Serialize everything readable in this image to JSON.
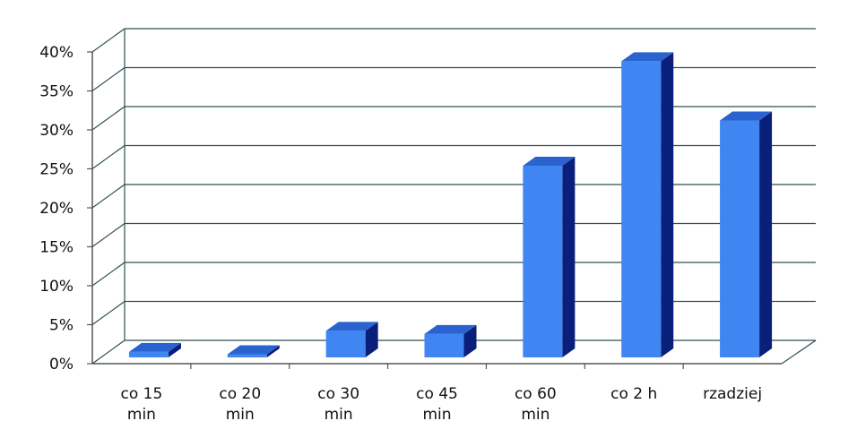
{
  "chart_data": {
    "type": "bar",
    "title": "",
    "xlabel": "",
    "ylabel": "",
    "categories": [
      [
        "co 15",
        "min"
      ],
      [
        "co 20",
        "min"
      ],
      [
        "co 30",
        "min"
      ],
      [
        "co 45",
        "min"
      ],
      [
        "co 60",
        "min"
      ],
      [
        "co 2 h"
      ],
      [
        "rzadziej"
      ]
    ],
    "values": [
      0.7,
      0.4,
      3.4,
      3.0,
      24.6,
      38.0,
      30.4
    ],
    "value_unit": "%",
    "ylim": [
      0,
      40
    ],
    "yticks": [
      "0%",
      "5%",
      "10%",
      "15%",
      "20%",
      "25%",
      "30%",
      "35%",
      "40%"
    ],
    "grid": true,
    "legend": "none",
    "colors": {
      "bar_front": "#3F86F2",
      "bar_top": "#2A63CF",
      "bar_side": "#0A1F7A",
      "gridline": "#2F4F4F",
      "axis": "#555555"
    }
  }
}
